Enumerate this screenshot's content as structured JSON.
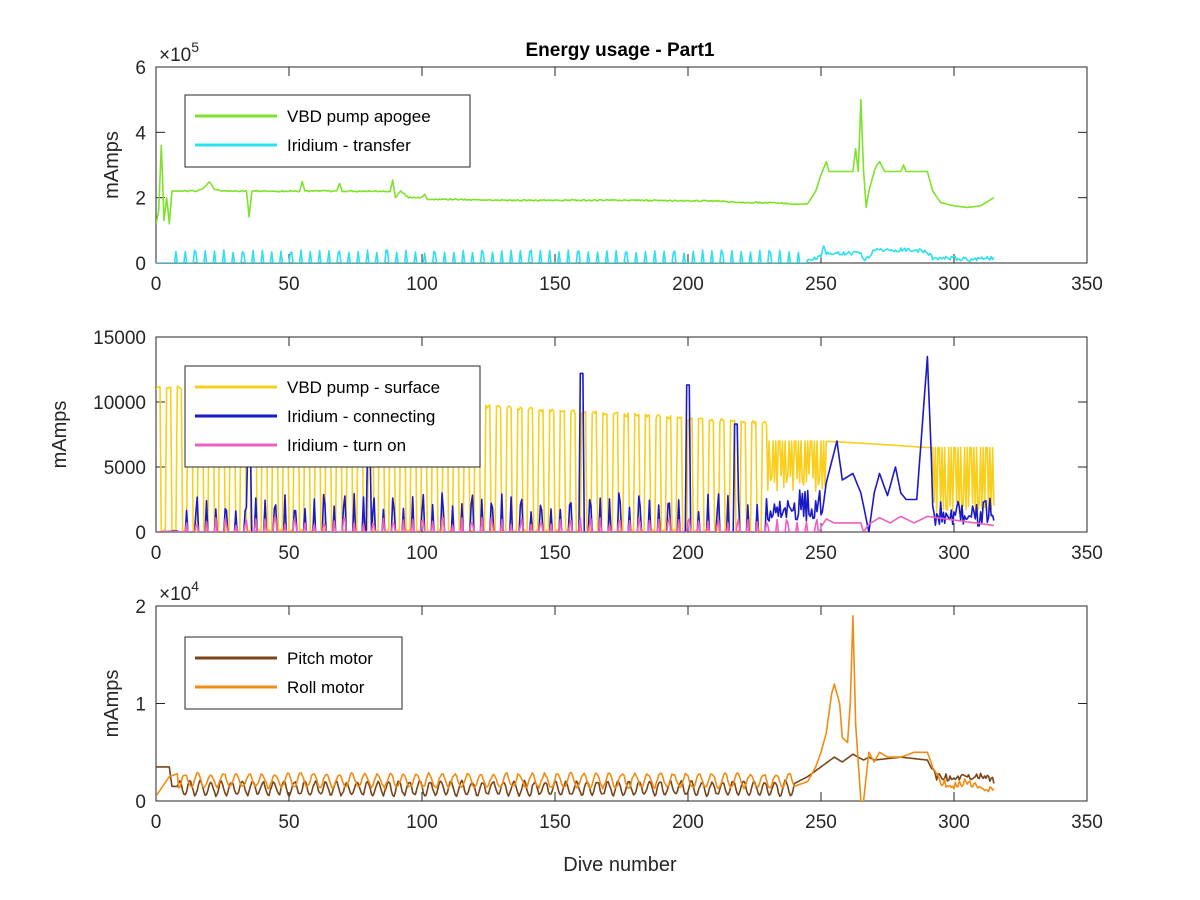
{
  "figure": {
    "title": "Energy usage - Part1",
    "xlabel": "Dive number"
  },
  "colors": {
    "vbd_apogee": "#7ee22b",
    "iridium_transfer": "#2de0ef",
    "vbd_surface": "#f7cf1c",
    "iridium_connecting": "#1a1ac8",
    "iridium_turnon": "#ee5fc0",
    "pitch_motor": "#7a4419",
    "roll_motor": "#f08c14"
  },
  "chart_data": [
    {
      "type": "line",
      "title": "Energy usage - Part1",
      "xlabel": "",
      "ylabel": "mAmps",
      "xlim": [
        0,
        350
      ],
      "ylim": [
        0,
        600000
      ],
      "x_ticks": [
        0,
        50,
        100,
        150,
        200,
        250,
        300,
        350
      ],
      "y_ticks": [
        0,
        2,
        4,
        6
      ],
      "y_exponent": "×10",
      "y_exponent_power": "5",
      "legend": "top-left",
      "grid": false,
      "series": [
        {
          "name": "VBD pump apogee",
          "color": "#7ee22b",
          "x": [
            0,
            1,
            2,
            3,
            4,
            5,
            6,
            8,
            10,
            15,
            18,
            20,
            22,
            25,
            30,
            34,
            35,
            36,
            38,
            45,
            50,
            54,
            55,
            56,
            58,
            65,
            68,
            69,
            70,
            75,
            85,
            88,
            89,
            90,
            92,
            95,
            100,
            101,
            102,
            110,
            130,
            160,
            180,
            200,
            210,
            220,
            230,
            240,
            245,
            248,
            250,
            251,
            252,
            253,
            255,
            258,
            262,
            263,
            264,
            265,
            266,
            267,
            268,
            270,
            271,
            272,
            274,
            278,
            280,
            281,
            282,
            285,
            290,
            292,
            295,
            300,
            305,
            310,
            315
          ],
          "y": [
            120000,
            160000,
            360000,
            130000,
            200000,
            120000,
            220000,
            220000,
            220000,
            220000,
            230000,
            250000,
            225000,
            220000,
            220000,
            220000,
            140000,
            220000,
            220000,
            220000,
            220000,
            220000,
            250000,
            220000,
            220000,
            220000,
            220000,
            245000,
            220000,
            220000,
            220000,
            220000,
            255000,
            200000,
            220000,
            200000,
            200000,
            212000,
            195000,
            195000,
            192000,
            192000,
            192000,
            190000,
            190000,
            185000,
            185000,
            180000,
            182000,
            220000,
            270000,
            290000,
            310000,
            280000,
            280000,
            280000,
            280000,
            350000,
            280000,
            500000,
            280000,
            170000,
            220000,
            280000,
            300000,
            310000,
            280000,
            280000,
            280000,
            300000,
            280000,
            280000,
            280000,
            220000,
            185000,
            175000,
            170000,
            175000,
            200000
          ]
        },
        {
          "name": "Iridium - transfer",
          "color": "#2de0ef",
          "x": [
            0,
            10,
            20,
            30,
            40,
            50,
            60,
            70,
            80,
            90,
            100,
            110,
            120,
            130,
            140,
            150,
            160,
            170,
            180,
            190,
            200,
            210,
            220,
            230,
            240,
            250,
            251,
            252,
            260,
            265,
            266,
            268,
            270,
            280,
            285,
            290,
            292,
            295,
            300,
            305,
            310,
            315
          ],
          "y": [
            0,
            0,
            0,
            0,
            0,
            0,
            0,
            0,
            0,
            0,
            0,
            0,
            0,
            0,
            0,
            0,
            0,
            0,
            0,
            0,
            0,
            0,
            0,
            0,
            0,
            20000,
            55000,
            30000,
            30000,
            30000,
            10000,
            20000,
            40000,
            40000,
            40000,
            35000,
            15000,
            15000,
            15000,
            10000,
            12000,
            15000
          ]
        }
      ]
    },
    {
      "type": "line",
      "title": "",
      "xlabel": "",
      "ylabel": "mAmps",
      "xlim": [
        0,
        350
      ],
      "ylim": [
        0,
        15000
      ],
      "x_ticks": [
        0,
        50,
        100,
        150,
        200,
        250,
        300,
        350
      ],
      "y_ticks": [
        0,
        5000,
        10000,
        15000
      ],
      "legend": "top-left",
      "grid": false,
      "series": [
        {
          "name": "VBD pump - surface",
          "color": "#f7cf1c",
          "x": [
            0,
            230,
            250,
            268,
            290,
            292,
            315
          ],
          "y": [
            12000,
            7500,
            7000,
            6800,
            6500,
            6500,
            6500
          ]
        },
        {
          "name": "Iridium - connecting",
          "color": "#1a1ac8",
          "x": [
            0,
            230,
            250,
            252,
            256,
            258,
            262,
            265,
            268,
            270,
            272,
            275,
            278,
            280,
            282,
            286,
            290,
            292,
            295,
            300,
            305,
            310,
            315
          ],
          "y": [
            0,
            2000,
            2000,
            3800,
            7000,
            4000,
            4500,
            3000,
            0,
            3000,
            4500,
            2800,
            5000,
            3000,
            2500,
            2500,
            13500,
            3000,
            2500,
            2200,
            2000,
            2000,
            2000
          ]
        },
        {
          "name": "Iridium - turn on",
          "color": "#ee5fc0",
          "x": [
            0,
            250,
            252,
            255,
            265,
            266,
            268,
            272,
            276,
            280,
            285,
            290,
            315
          ],
          "y": [
            0,
            400,
            1000,
            700,
            700,
            0,
            600,
            1100,
            700,
            1200,
            700,
            1200,
            500
          ]
        }
      ]
    },
    {
      "type": "line",
      "title": "",
      "xlabel": "Dive number",
      "ylabel": "mAmps",
      "xlim": [
        0,
        350
      ],
      "ylim": [
        0,
        20000
      ],
      "x_ticks": [
        0,
        50,
        100,
        150,
        200,
        250,
        300,
        350
      ],
      "y_ticks": [
        0,
        1,
        2
      ],
      "y_exponent": "×10",
      "y_exponent_power": "4",
      "legend": "top-left",
      "grid": false,
      "series": [
        {
          "name": "Pitch motor",
          "color": "#7a4419",
          "x": [
            0,
            5,
            6,
            240,
            245,
            250,
            255,
            258,
            262,
            266,
            268,
            270,
            280,
            290,
            293,
            296,
            300,
            305,
            310,
            315
          ],
          "y": [
            3500,
            3500,
            1500,
            1800,
            2500,
            3500,
            4500,
            4000,
            4800,
            4200,
            4500,
            4200,
            4500,
            4200,
            2500,
            2500,
            2200,
            2500,
            2500,
            2000
          ]
        },
        {
          "name": "Roll motor",
          "color": "#f08c14",
          "x": [
            0,
            5,
            10,
            240,
            245,
            248,
            250,
            252,
            254,
            255,
            257,
            258,
            260,
            261,
            262,
            263,
            264,
            265,
            266,
            267,
            268,
            270,
            272,
            275,
            280,
            285,
            290,
            292,
            295,
            300,
            305,
            310,
            315
          ],
          "y": [
            500,
            2500,
            3000,
            1500,
            2000,
            3500,
            5000,
            7000,
            11000,
            12000,
            10000,
            6500,
            6000,
            10000,
            19000,
            8000,
            4000,
            0,
            0,
            2500,
            5000,
            4000,
            5000,
            4500,
            4500,
            5000,
            5000,
            3500,
            2000,
            1500,
            2000,
            1500,
            1000
          ]
        }
      ]
    }
  ]
}
